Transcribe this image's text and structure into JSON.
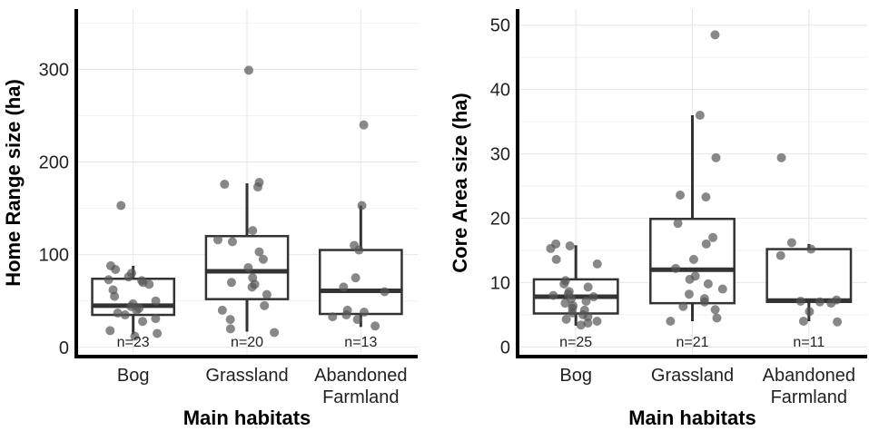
{
  "chart_data": [
    {
      "type": "box",
      "ylabel": "Home Range size (ha)",
      "xlabel": "Main habitats",
      "ylim": [
        -10,
        365
      ],
      "yticks": [
        0,
        100,
        200,
        300
      ],
      "grid": true,
      "categories": [
        {
          "name": "Bog",
          "lines": [
            "Bog"
          ],
          "n_label": "n=23",
          "q1": 35,
          "median": 45,
          "q3": 74,
          "whisker_low": 14,
          "whisker_high": 88,
          "points": [
            153,
            88,
            84,
            80,
            76,
            73,
            72,
            70,
            68,
            62,
            55,
            50,
            47,
            44,
            42,
            40,
            37,
            35,
            31,
            28,
            18,
            15,
            12
          ]
        },
        {
          "name": "Grassland",
          "lines": [
            "Grassland"
          ],
          "n_label": "n=20",
          "q1": 52,
          "median": 82,
          "q3": 120,
          "whisker_low": 17,
          "whisker_high": 177,
          "points": [
            299,
            178,
            176,
            173,
            126,
            116,
            114,
            103,
            95,
            86,
            75,
            70,
            68,
            65,
            57,
            45,
            40,
            30,
            20,
            16
          ]
        },
        {
          "name": "Abandoned Farmland",
          "lines": [
            "Abandoned",
            "Farmland"
          ],
          "n_label": "n=13",
          "q1": 36,
          "median": 61,
          "q3": 105,
          "whisker_low": 22,
          "whisker_high": 153,
          "points": [
            240,
            153,
            110,
            105,
            75,
            65,
            60,
            40,
            38,
            35,
            33,
            30,
            23
          ]
        }
      ]
    },
    {
      "type": "box",
      "ylabel": "Core Area size (ha)",
      "xlabel": "Main habitats",
      "ylim": [
        -1.5,
        52.5
      ],
      "yticks": [
        0,
        10,
        20,
        30,
        40,
        50
      ],
      "grid": true,
      "categories": [
        {
          "name": "Bog",
          "lines": [
            "Bog"
          ],
          "n_label": "n=25",
          "q1": 5.2,
          "median": 7.8,
          "q3": 10.5,
          "whisker_low": 3.3,
          "whisker_high": 15.8,
          "points": [
            16,
            15.7,
            15.3,
            13.6,
            12.9,
            10.3,
            9.8,
            9.3,
            8.6,
            8.2,
            8.0,
            7.8,
            7.5,
            7.1,
            6.8,
            6.4,
            6.0,
            5.7,
            5.3,
            5.0,
            4.7,
            4.3,
            4.0,
            3.7,
            3.4
          ]
        },
        {
          "name": "Grassland",
          "lines": [
            "Grassland"
          ],
          "n_label": "n=21",
          "q1": 6.8,
          "median": 12,
          "q3": 19.9,
          "whisker_low": 4.0,
          "whisker_high": 36,
          "points": [
            48.5,
            36,
            29.4,
            23.6,
            23.3,
            19.2,
            17.0,
            16.0,
            13.6,
            12.2,
            11.0,
            10.5,
            9.8,
            9.0,
            8.2,
            7.5,
            7.0,
            6.3,
            5.8,
            4.5,
            4.0
          ]
        },
        {
          "name": "Abandoned Farmland",
          "lines": [
            "Abandoned",
            "Farmland"
          ],
          "n_label": "n=11",
          "q1": 7.0,
          "median": 7.2,
          "q3": 15.2,
          "whisker_low": 4.0,
          "whisker_high": 16.0,
          "points": [
            29.4,
            16.2,
            15.2,
            14.2,
            7.3,
            7.1,
            7.0,
            6.8,
            5.5,
            4.0,
            3.9
          ]
        }
      ]
    }
  ]
}
